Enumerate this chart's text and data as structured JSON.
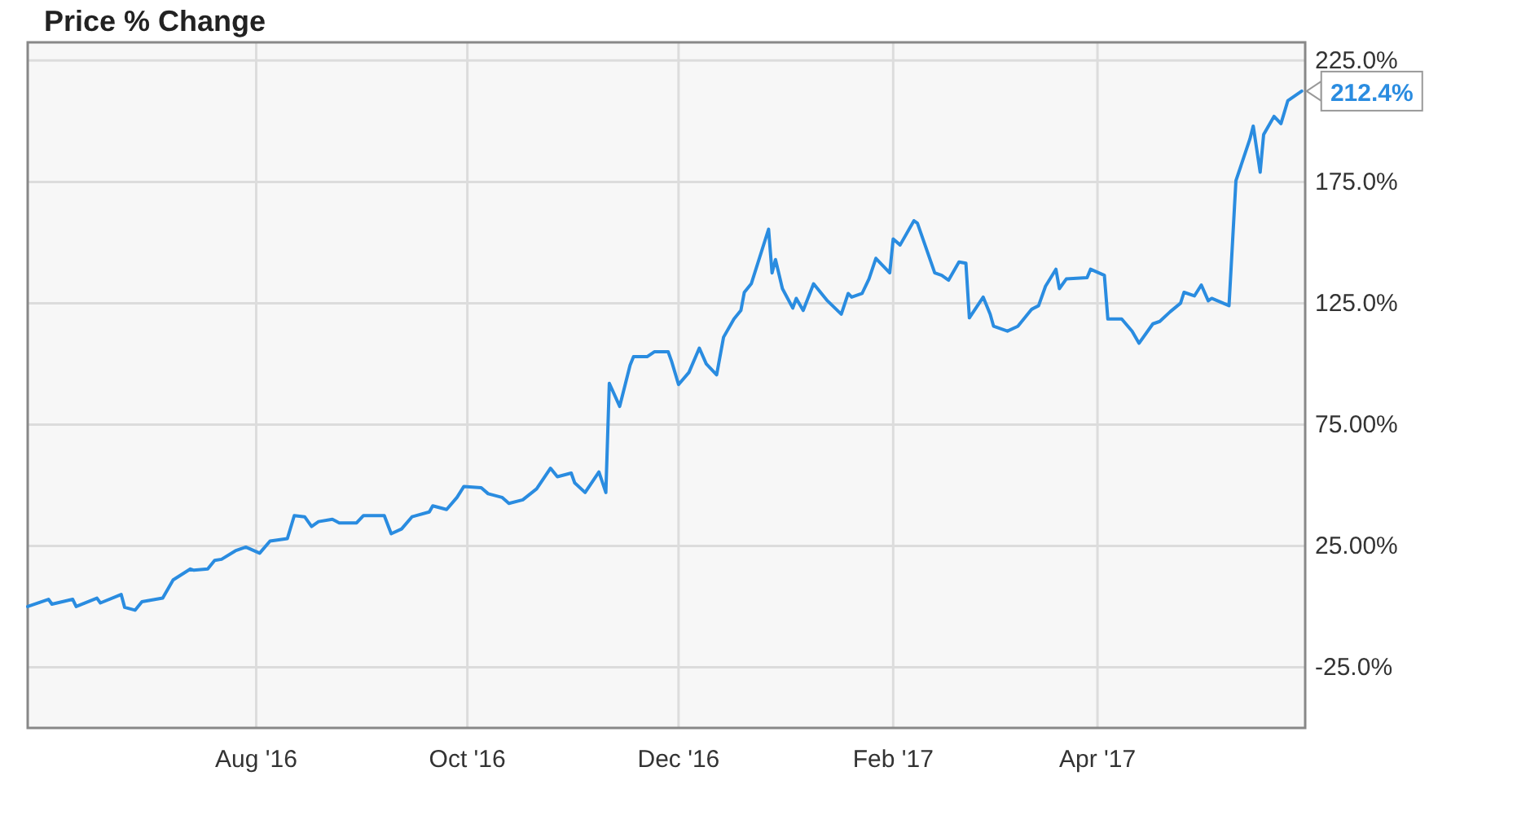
{
  "chart_data": {
    "type": "line",
    "title": "Price % Change",
    "x": [
      "2016-05-27",
      "2016-06-02",
      "2016-06-03",
      "2016-06-09",
      "2016-06-10",
      "2016-06-16",
      "2016-06-17",
      "2016-06-23",
      "2016-06-24",
      "2016-06-27",
      "2016-06-29",
      "2016-07-05",
      "2016-07-08",
      "2016-07-13",
      "2016-07-14",
      "2016-07-18",
      "2016-07-20",
      "2016-07-22",
      "2016-07-26",
      "2016-07-29",
      "2016-08-02",
      "2016-08-05",
      "2016-08-10",
      "2016-08-12",
      "2016-08-15",
      "2016-08-17",
      "2016-08-19",
      "2016-08-23",
      "2016-08-25",
      "2016-08-30",
      "2016-09-01",
      "2016-09-07",
      "2016-09-09",
      "2016-09-12",
      "2016-09-15",
      "2016-09-20",
      "2016-09-21",
      "2016-09-25",
      "2016-09-28",
      "2016-09-30",
      "2016-10-05",
      "2016-10-07",
      "2016-10-11",
      "2016-10-13",
      "2016-10-17",
      "2016-10-21",
      "2016-10-25",
      "2016-10-27",
      "2016-10-31",
      "2016-11-01",
      "2016-11-04",
      "2016-11-08",
      "2016-11-10",
      "2016-11-11",
      "2016-11-14",
      "2016-11-17",
      "2016-11-18",
      "2016-11-22",
      "2016-11-24",
      "2016-11-28",
      "2016-11-29",
      "2016-12-01",
      "2016-12-04",
      "2016-12-07",
      "2016-12-09",
      "2016-12-12",
      "2016-12-14",
      "2016-12-17",
      "2016-12-19",
      "2016-12-20",
      "2016-12-22",
      "2016-12-27",
      "2016-12-28",
      "2016-12-29",
      "2016-12-31",
      "2017-01-03",
      "2017-01-04",
      "2017-01-06",
      "2017-01-09",
      "2017-01-13",
      "2017-01-17",
      "2017-01-19",
      "2017-01-20",
      "2017-01-23",
      "2017-01-25",
      "2017-01-27",
      "2017-01-31",
      "2017-02-01",
      "2017-02-03",
      "2017-02-07",
      "2017-02-08",
      "2017-02-13",
      "2017-02-15",
      "2017-02-17",
      "2017-02-20",
      "2017-02-22",
      "2017-02-23",
      "2017-02-27",
      "2017-03-01",
      "2017-03-02",
      "2017-03-06",
      "2017-03-09",
      "2017-03-13",
      "2017-03-15",
      "2017-03-17",
      "2017-03-20",
      "2017-03-21",
      "2017-03-23",
      "2017-03-29",
      "2017-03-30",
      "2017-04-03",
      "2017-04-04",
      "2017-04-08",
      "2017-04-11",
      "2017-04-13",
      "2017-04-17",
      "2017-04-19",
      "2017-04-22",
      "2017-04-25",
      "2017-04-26",
      "2017-04-29",
      "2017-05-01",
      "2017-05-03",
      "2017-05-04",
      "2017-05-09",
      "2017-05-11",
      "2017-05-15",
      "2017-05-16",
      "2017-05-18",
      "2017-05-19",
      "2017-05-22",
      "2017-05-24",
      "2017-05-26",
      "2017-05-30"
    ],
    "series": [
      {
        "color": "#2a8ce0",
        "values": [
          0,
          3,
          1,
          3,
          0,
          3.5,
          1.5,
          5,
          -0.3,
          -1.5,
          2,
          3.5,
          11,
          15.5,
          15,
          15.5,
          19,
          19.5,
          23,
          24.5,
          22,
          27,
          28,
          37.5,
          37,
          33,
          35,
          36,
          34.5,
          34.5,
          37.5,
          37.5,
          30,
          32,
          37,
          39,
          41.5,
          40,
          45,
          49.5,
          49,
          46.5,
          45,
          42.5,
          44,
          48.5,
          57,
          53.5,
          55,
          51,
          47,
          55.5,
          47,
          92,
          82.5,
          99.5,
          103,
          103,
          105,
          105,
          101,
          91.5,
          96.5,
          106.5,
          100,
          95.5,
          111,
          118.5,
          122,
          129.5,
          133,
          155.5,
          137.5,
          143,
          131,
          123,
          127,
          122,
          133,
          126,
          120.5,
          129,
          127.5,
          129,
          135,
          143.5,
          137.5,
          151.5,
          149,
          159,
          158,
          137.5,
          136.5,
          134.5,
          142,
          141.5,
          119,
          127.5,
          120.5,
          115.5,
          113.5,
          115.5,
          122.5,
          124,
          132,
          139,
          131,
          135,
          135.5,
          139,
          136.5,
          118.5,
          118.5,
          113.5,
          108.5,
          116.5,
          117.5,
          121.5,
          125,
          129.5,
          128,
          132.5,
          126,
          127,
          124,
          175.5,
          192.5,
          198,
          179,
          194.5,
          202,
          199,
          208.5,
          212.4
        ]
      }
    ],
    "xlim": [
      "2016-05-27",
      "2017-05-31"
    ],
    "xticks": [
      {
        "value": "2016-08-01",
        "label": "Aug '16"
      },
      {
        "value": "2016-10-01",
        "label": "Oct '16"
      },
      {
        "value": "2016-12-01",
        "label": "Dec '16"
      },
      {
        "value": "2017-02-01",
        "label": "Feb '17"
      },
      {
        "value": "2017-04-01",
        "label": "Apr '17"
      }
    ],
    "ylim": [
      -50,
      232.5
    ],
    "yticks": [
      {
        "value": 225,
        "label": "225.0%"
      },
      {
        "value": 175,
        "label": "175.0%"
      },
      {
        "value": 125,
        "label": "125.0%"
      },
      {
        "value": 75,
        "label": "75.00%"
      },
      {
        "value": 25,
        "label": "25.00%"
      },
      {
        "value": -25,
        "label": "-25.0%"
      }
    ],
    "grid": true,
    "marker": "none",
    "line_style": "solid",
    "annotations": [
      {
        "text": "212.4%",
        "x": "2017-05-30",
        "y": 212.4
      }
    ]
  }
}
